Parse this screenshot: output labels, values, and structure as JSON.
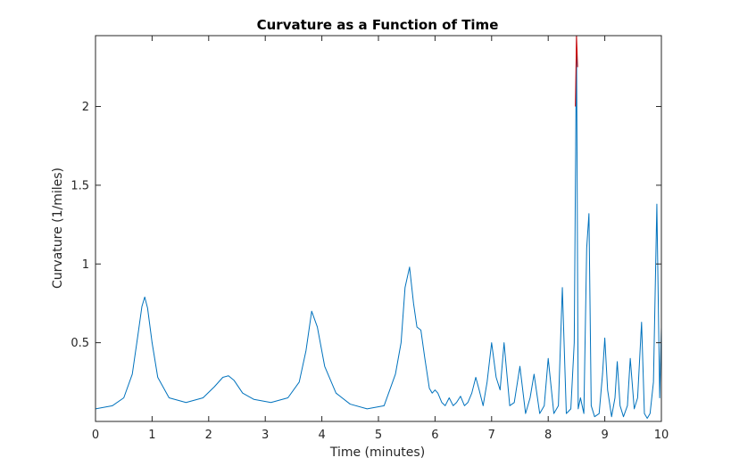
{
  "chart_data": {
    "type": "line",
    "title": "Curvature as a Function of Time",
    "xlabel": "Time (minutes)",
    "ylabel": "Curvature (1/miles)",
    "xlim": [
      0,
      10
    ],
    "ylim": [
      0,
      2.45
    ],
    "x_ticks": [
      0,
      1,
      2,
      3,
      4,
      5,
      6,
      7,
      8,
      9,
      10
    ],
    "x_tick_labels": [
      "0",
      "1",
      "2",
      "3",
      "4",
      "5",
      "6",
      "7",
      "8",
      "9",
      "10"
    ],
    "y_ticks": [
      0.5,
      1,
      1.5,
      2
    ],
    "y_tick_labels": [
      "0.5",
      "1",
      "1.5",
      "2"
    ],
    "grid": false,
    "colors": {
      "series_main": "#0072BD",
      "series_highlight": "#D00000",
      "axes": "#262626"
    },
    "series": [
      {
        "color": "#0072BD",
        "x": [
          0,
          0.3,
          0.5,
          0.65,
          0.75,
          0.82,
          0.87,
          0.92,
          1.0,
          1.1,
          1.3,
          1.6,
          1.9,
          2.1,
          2.25,
          2.35,
          2.45,
          2.6,
          2.8,
          3.1,
          3.4,
          3.6,
          3.72,
          3.82,
          3.92,
          4.05,
          4.25,
          4.5,
          4.8,
          5.1,
          5.2,
          5.3,
          5.4,
          5.47,
          5.55,
          5.62,
          5.68,
          5.75,
          5.82,
          5.9,
          5.95,
          6.0,
          6.05,
          6.12,
          6.18,
          6.25,
          6.32,
          6.38,
          6.45,
          6.52,
          6.58,
          6.65,
          6.72,
          6.78,
          6.85,
          6.92,
          7.0,
          7.08,
          7.15,
          7.22,
          7.32,
          7.4,
          7.5,
          7.6,
          7.68,
          7.75,
          7.85,
          7.93,
          8.0,
          8.1,
          8.18,
          8.25,
          8.32,
          8.4,
          8.46,
          8.5,
          8.53,
          8.57,
          8.63,
          8.68,
          8.72,
          8.76,
          8.82,
          8.9,
          8.96,
          9.0,
          9.05,
          9.12,
          9.18,
          9.22,
          9.27,
          9.33,
          9.4,
          9.45,
          9.52,
          9.58,
          9.65,
          9.7,
          9.75,
          9.8,
          9.86,
          9.92,
          9.97,
          10.0
        ],
        "y": [
          0.08,
          0.1,
          0.15,
          0.3,
          0.55,
          0.73,
          0.79,
          0.72,
          0.5,
          0.28,
          0.15,
          0.12,
          0.15,
          0.22,
          0.28,
          0.29,
          0.26,
          0.18,
          0.14,
          0.12,
          0.15,
          0.25,
          0.45,
          0.7,
          0.6,
          0.35,
          0.18,
          0.11,
          0.08,
          0.1,
          0.2,
          0.3,
          0.5,
          0.85,
          0.98,
          0.75,
          0.6,
          0.58,
          0.4,
          0.21,
          0.18,
          0.2,
          0.18,
          0.12,
          0.1,
          0.15,
          0.1,
          0.12,
          0.16,
          0.1,
          0.12,
          0.18,
          0.28,
          0.2,
          0.1,
          0.25,
          0.5,
          0.28,
          0.2,
          0.5,
          0.1,
          0.12,
          0.35,
          0.05,
          0.15,
          0.3,
          0.05,
          0.1,
          0.4,
          0.05,
          0.1,
          0.85,
          0.05,
          0.08,
          0.5,
          2.45,
          0.08,
          0.15,
          0.05,
          1.1,
          1.32,
          0.1,
          0.03,
          0.05,
          0.3,
          0.53,
          0.2,
          0.03,
          0.15,
          0.38,
          0.1,
          0.03,
          0.1,
          0.4,
          0.08,
          0.15,
          0.63,
          0.05,
          0.02,
          0.05,
          0.25,
          1.38,
          0.15,
          0.6
        ]
      },
      {
        "color": "#D00000",
        "x": [
          8.48,
          8.5,
          8.52
        ],
        "y": [
          2.0,
          2.45,
          2.25
        ]
      }
    ]
  }
}
